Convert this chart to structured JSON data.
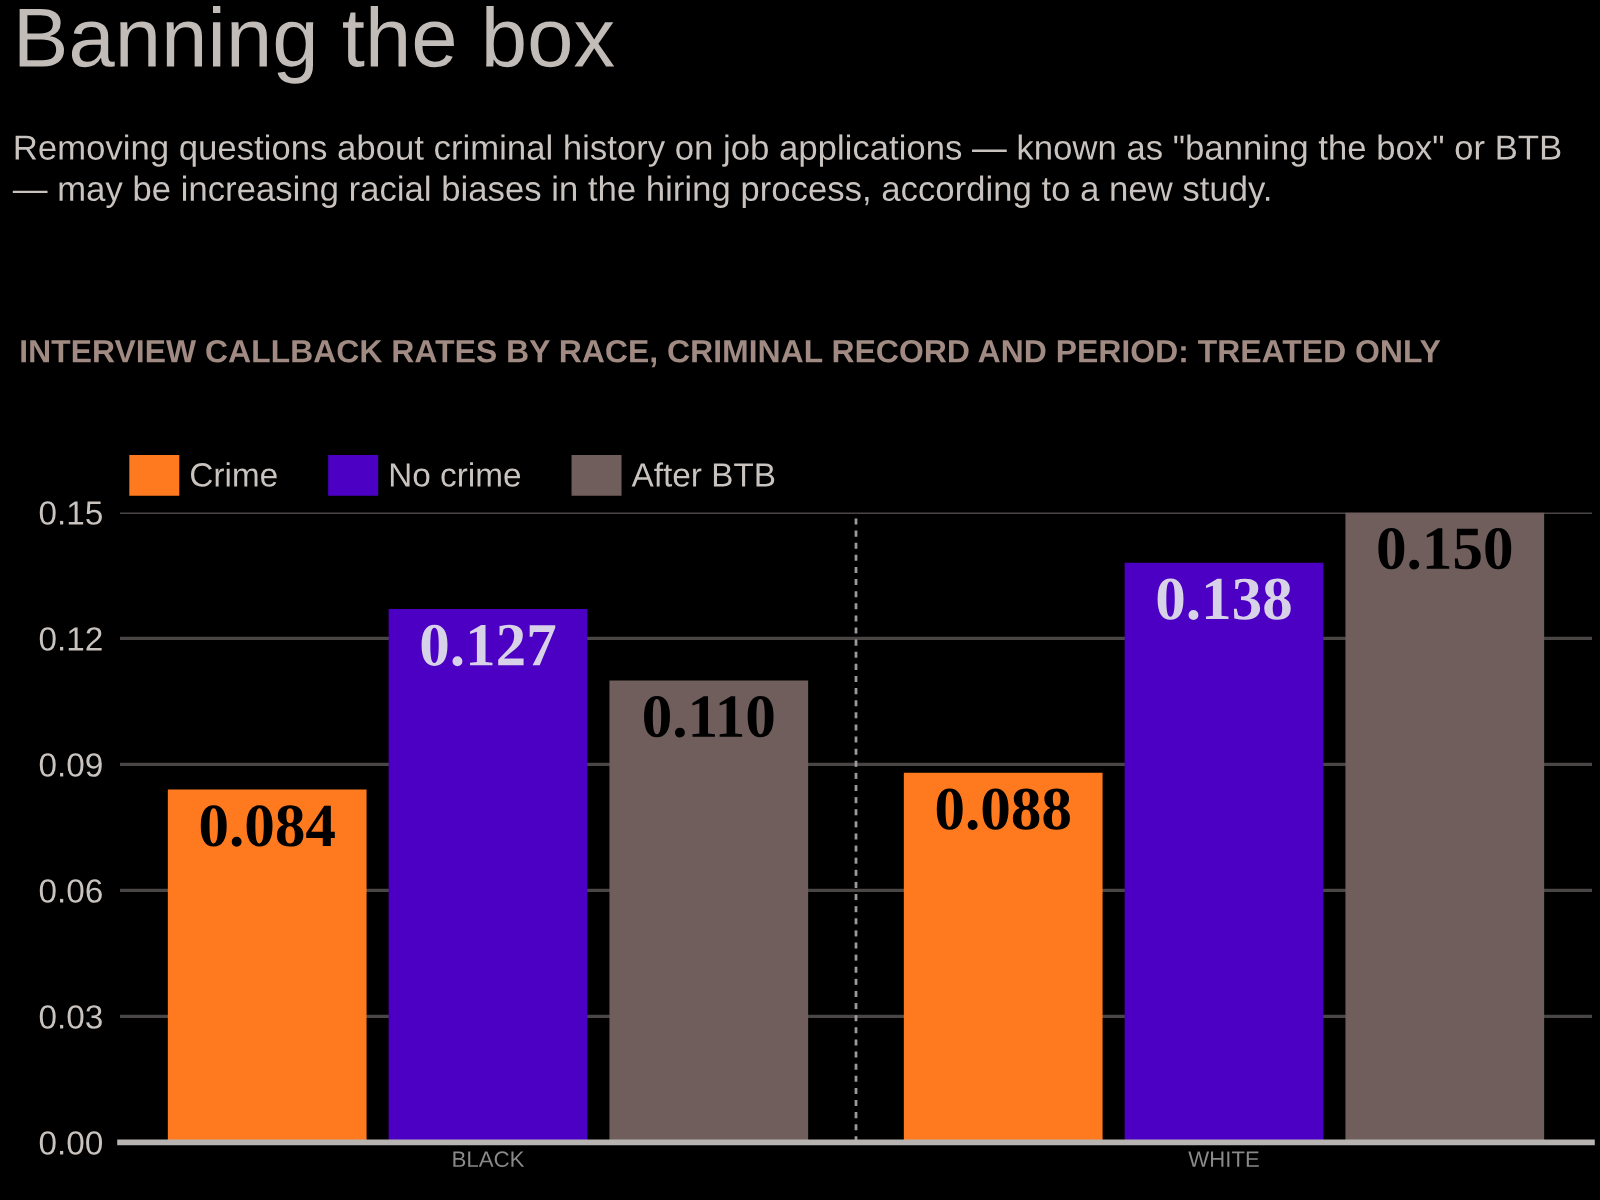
{
  "chart_data": {
    "type": "bar",
    "title": "Banning the box",
    "subtitle": "Removing questions about criminal history on job applications — known as \"banning the box\" or BTB — may be increasing racial biases in the hiring process, according to a new study.",
    "annotations": [
      "INTERVIEW CALLBACK RATES BY RACE, CRIMINAL RECORD AND PERIOD: TREATED ONLY"
    ],
    "categories": [
      "BLACK",
      "WHITE"
    ],
    "series": [
      {
        "name": "Crime",
        "color": "#ff7a1f",
        "values": [
          0.084,
          0.088
        ],
        "value_labels": [
          "0.084",
          "0.088"
        ]
      },
      {
        "name": "No crime",
        "color": "#4c00c4",
        "values": [
          0.127,
          0.138
        ],
        "value_labels": [
          "0.127",
          "0.138"
        ]
      },
      {
        "name": "After BTB",
        "color": "#6f5e5c",
        "values": [
          0.11,
          0.15
        ],
        "value_labels": [
          "0.110",
          "0.150"
        ]
      }
    ],
    "ylim": [
      0,
      0.15
    ],
    "yticks": [
      {
        "value": 0,
        "label": "0.00"
      },
      0.03,
      0.06,
      0.09,
      0.12,
      0.15
    ],
    "grid": "y",
    "legend": "top left"
  }
}
